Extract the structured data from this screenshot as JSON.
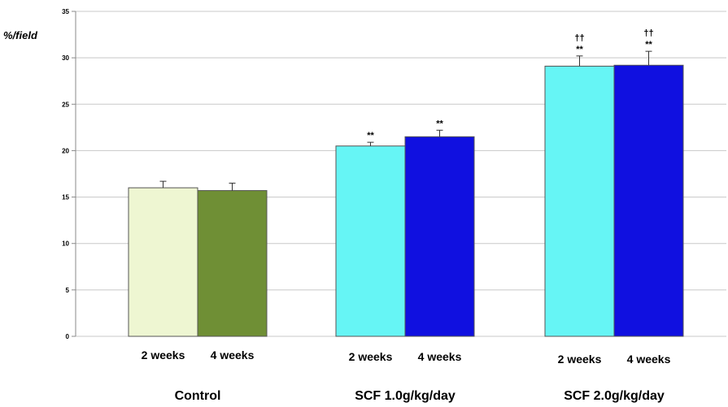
{
  "chart_data": {
    "type": "bar",
    "ylabel": "%/field",
    "ylim": [
      0,
      35
    ],
    "yticks": [
      0,
      5,
      10,
      15,
      20,
      25,
      30,
      35
    ],
    "grid": true,
    "groups": [
      {
        "name": "Control",
        "bars": [
          {
            "label": "2 weeks",
            "value": 16.0,
            "error": 0.7,
            "color": "#eef6d2",
            "marks": []
          },
          {
            "label": "4 weeks",
            "value": 15.7,
            "error": 0.8,
            "color": "#6f8f35",
            "marks": []
          }
        ]
      },
      {
        "name": "SCF 1.0g/kg/day",
        "bars": [
          {
            "label": "2 weeks",
            "value": 20.5,
            "error": 0.4,
            "color": "#66f5f5",
            "marks": [
              "**"
            ]
          },
          {
            "label": "4 weeks",
            "value": 21.5,
            "error": 0.7,
            "color": "#1010e0",
            "marks": [
              "**"
            ]
          }
        ]
      },
      {
        "name": "SCF 2.0g/kg/day",
        "bars": [
          {
            "label": "2 weeks",
            "value": 29.1,
            "error": 1.1,
            "color": "#66f5f5",
            "marks": [
              "**",
              "††"
            ]
          },
          {
            "label": "4 weeks",
            "value": 29.2,
            "error": 1.5,
            "color": "#1010e0",
            "marks": [
              "**",
              "††"
            ]
          }
        ]
      }
    ]
  }
}
